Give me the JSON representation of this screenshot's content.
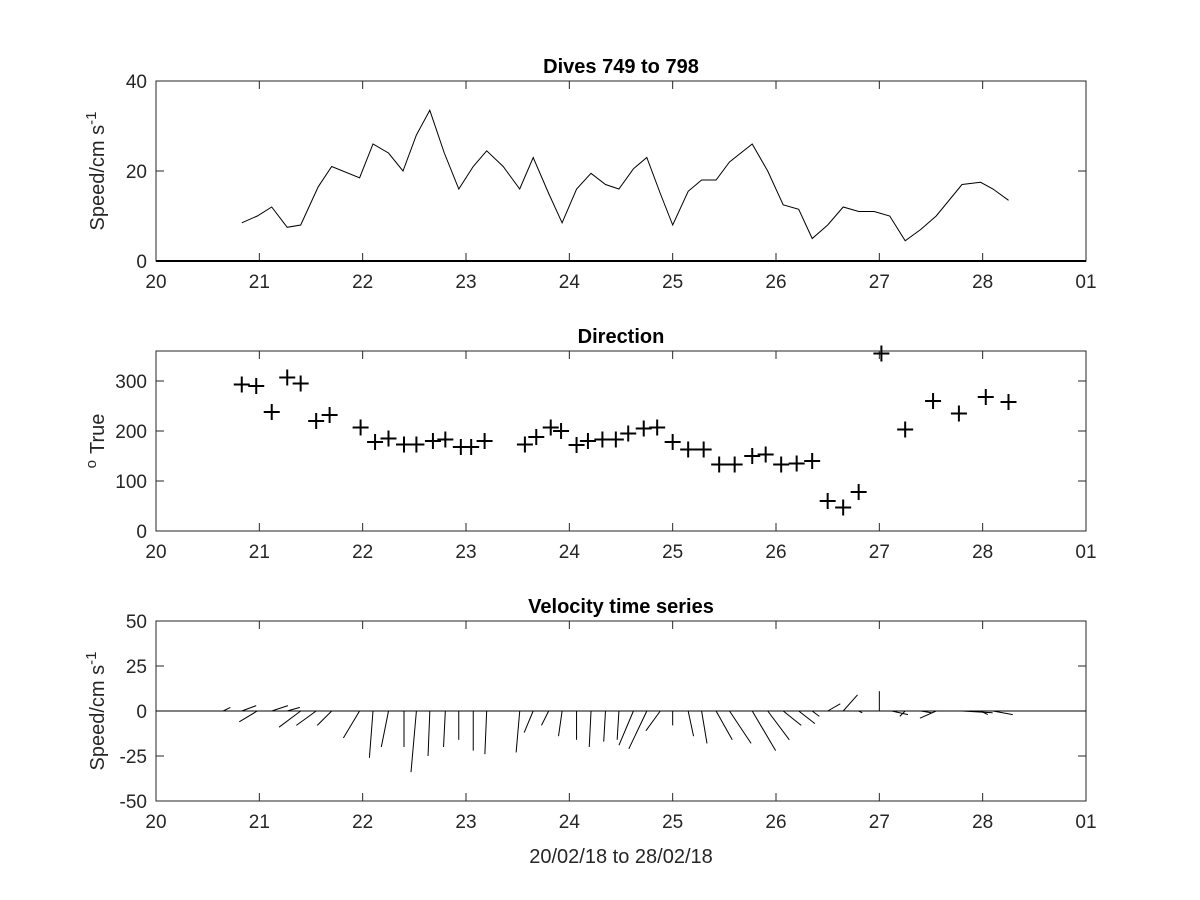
{
  "chart_data": [
    {
      "type": "line",
      "title": "Dives 749 to 798",
      "ylabel": "Speed/cm s",
      "ylabel_superscript": "-1",
      "xlim": [
        20,
        29
      ],
      "ylim": [
        0,
        40
      ],
      "xticklabels": [
        "20",
        "21",
        "22",
        "23",
        "24",
        "25",
        "26",
        "27",
        "28",
        "01"
      ],
      "yticks": [
        0,
        20,
        40
      ],
      "series": [
        {
          "x": [
            20.83,
            20.98,
            21.12,
            21.27,
            21.4,
            21.57,
            21.7,
            21.97,
            22.1,
            22.25,
            22.39,
            22.52,
            22.65,
            22.79,
            22.93,
            23.07,
            23.2,
            23.36,
            23.52,
            23.65,
            23.8,
            23.93,
            24.07,
            24.21,
            24.35,
            24.48,
            24.62,
            24.75,
            24.88,
            25.0,
            25.15,
            25.28,
            25.42,
            25.55,
            25.77,
            25.92,
            26.07,
            26.22,
            26.35,
            26.5,
            26.65,
            26.8,
            26.95,
            27.1,
            27.25,
            27.4,
            27.55,
            27.8,
            27.98,
            28.1,
            28.25
          ],
          "values": [
            8.5,
            10,
            12,
            7.5,
            8,
            16.5,
            21,
            18.5,
            26,
            24,
            20,
            28,
            33.5,
            24,
            16,
            21,
            24.5,
            21,
            16,
            23,
            15,
            8.5,
            16,
            19.5,
            17,
            16,
            20.5,
            23,
            15,
            8,
            15.5,
            18,
            18,
            22,
            26,
            20,
            12.5,
            11.5,
            5,
            8,
            12,
            11,
            11,
            10,
            4.5,
            7,
            10,
            17,
            17.5,
            16,
            13.5
          ]
        }
      ]
    },
    {
      "type": "scatter",
      "title": "Direction",
      "ylabel": "True",
      "ylabel_superscript": "o",
      "xlim": [
        20,
        29
      ],
      "ylim": [
        0,
        360
      ],
      "xticklabels": [
        "20",
        "21",
        "22",
        "23",
        "24",
        "25",
        "26",
        "27",
        "28",
        "01"
      ],
      "yticks": [
        0,
        100,
        200,
        300
      ],
      "marker": "+",
      "series": [
        {
          "x": [
            20.83,
            20.97,
            21.12,
            21.27,
            21.4,
            21.55,
            21.68,
            21.98,
            22.12,
            22.25,
            22.4,
            22.52,
            22.68,
            22.8,
            22.95,
            23.05,
            23.18,
            23.57,
            23.68,
            23.82,
            23.92,
            24.07,
            24.18,
            24.32,
            24.45,
            24.57,
            24.72,
            24.85,
            25.0,
            25.15,
            25.3,
            25.45,
            25.6,
            25.77,
            25.9,
            26.05,
            26.2,
            26.35,
            26.5,
            26.65,
            26.8,
            27.02,
            27.25,
            27.52,
            27.77,
            28.03,
            28.25
          ],
          "values": [
            293,
            290,
            238,
            307,
            295,
            220,
            232,
            207,
            178,
            185,
            173,
            173,
            180,
            183,
            168,
            168,
            180,
            173,
            188,
            207,
            200,
            172,
            180,
            183,
            183,
            195,
            205,
            207,
            178,
            163,
            163,
            133,
            133,
            150,
            153,
            133,
            135,
            140,
            60,
            47,
            78,
            355,
            203,
            260,
            235,
            268,
            258
          ]
        }
      ]
    },
    {
      "type": "stick",
      "title": "Velocity time series",
      "ylabel": "Speed/cm s",
      "ylabel_superscript": "-1",
      "xlabel": "20/02/18 to 28/02/18",
      "xlim": [
        20,
        29
      ],
      "ylim": [
        -50,
        50
      ],
      "xticklabels": [
        "20",
        "21",
        "22",
        "23",
        "24",
        "25",
        "26",
        "27",
        "28",
        "01"
      ],
      "yticks": [
        -50,
        -25,
        0,
        25,
        50
      ],
      "sticks": [
        {
          "t": 20.65,
          "u": 4,
          "v": 2
        },
        {
          "t": 20.83,
          "u": 8,
          "v": 3
        },
        {
          "t": 20.98,
          "u": -10,
          "v": -6
        },
        {
          "t": 21.12,
          "u": 9,
          "v": 3
        },
        {
          "t": 21.27,
          "u": 7,
          "v": 2
        },
        {
          "t": 21.4,
          "u": -12,
          "v": -9
        },
        {
          "t": 21.55,
          "u": -11,
          "v": -8
        },
        {
          "t": 21.7,
          "u": -8,
          "v": -8
        },
        {
          "t": 21.97,
          "u": -9,
          "v": -15
        },
        {
          "t": 22.1,
          "u": -2,
          "v": -26
        },
        {
          "t": 22.25,
          "u": -4,
          "v": -20
        },
        {
          "t": 22.4,
          "u": 0,
          "v": -20
        },
        {
          "t": 22.52,
          "u": -3,
          "v": -34
        },
        {
          "t": 22.65,
          "u": -1,
          "v": -25
        },
        {
          "t": 22.8,
          "u": -1,
          "v": -20
        },
        {
          "t": 22.93,
          "u": 0,
          "v": -16
        },
        {
          "t": 23.07,
          "u": 0,
          "v": -22
        },
        {
          "t": 23.2,
          "u": -1,
          "v": -24
        },
        {
          "t": 23.52,
          "u": -2,
          "v": -23
        },
        {
          "t": 23.65,
          "u": -5,
          "v": -12
        },
        {
          "t": 23.8,
          "u": -4,
          "v": -8
        },
        {
          "t": 23.93,
          "u": -2,
          "v": -14
        },
        {
          "t": 24.07,
          "u": 0,
          "v": -16
        },
        {
          "t": 24.21,
          "u": -1,
          "v": -20
        },
        {
          "t": 24.35,
          "u": -1,
          "v": -17
        },
        {
          "t": 24.48,
          "u": -1,
          "v": -16
        },
        {
          "t": 24.62,
          "u": -8,
          "v": -19
        },
        {
          "t": 24.75,
          "u": -10,
          "v": -21
        },
        {
          "t": 24.88,
          "u": -8,
          "v": -11
        },
        {
          "t": 25.0,
          "u": 0,
          "v": -8
        },
        {
          "t": 25.15,
          "u": 3,
          "v": -14
        },
        {
          "t": 25.28,
          "u": 3,
          "v": -18
        },
        {
          "t": 25.42,
          "u": 9,
          "v": -16
        },
        {
          "t": 25.55,
          "u": 12,
          "v": -18
        },
        {
          "t": 25.77,
          "u": 13,
          "v": -22
        },
        {
          "t": 25.92,
          "u": 12,
          "v": -16
        },
        {
          "t": 26.07,
          "u": 10,
          "v": -8
        },
        {
          "t": 26.22,
          "u": 9,
          "v": -7
        },
        {
          "t": 26.35,
          "u": 4,
          "v": -3
        },
        {
          "t": 26.5,
          "u": 7,
          "v": 4
        },
        {
          "t": 26.65,
          "u": 8,
          "v": 9
        },
        {
          "t": 26.8,
          "u": 2,
          "v": -1
        },
        {
          "t": 27.0,
          "u": 0,
          "v": 11
        },
        {
          "t": 27.12,
          "u": 9,
          "v": -2
        },
        {
          "t": 27.25,
          "u": -3,
          "v": -3
        },
        {
          "t": 27.4,
          "u": 6,
          "v": -1
        },
        {
          "t": 27.55,
          "u": -9,
          "v": -4
        },
        {
          "t": 27.8,
          "u": 17,
          "v": -1
        },
        {
          "t": 27.98,
          "u": 4,
          "v": -2
        },
        {
          "t": 28.1,
          "u": 11,
          "v": -2
        }
      ]
    }
  ]
}
